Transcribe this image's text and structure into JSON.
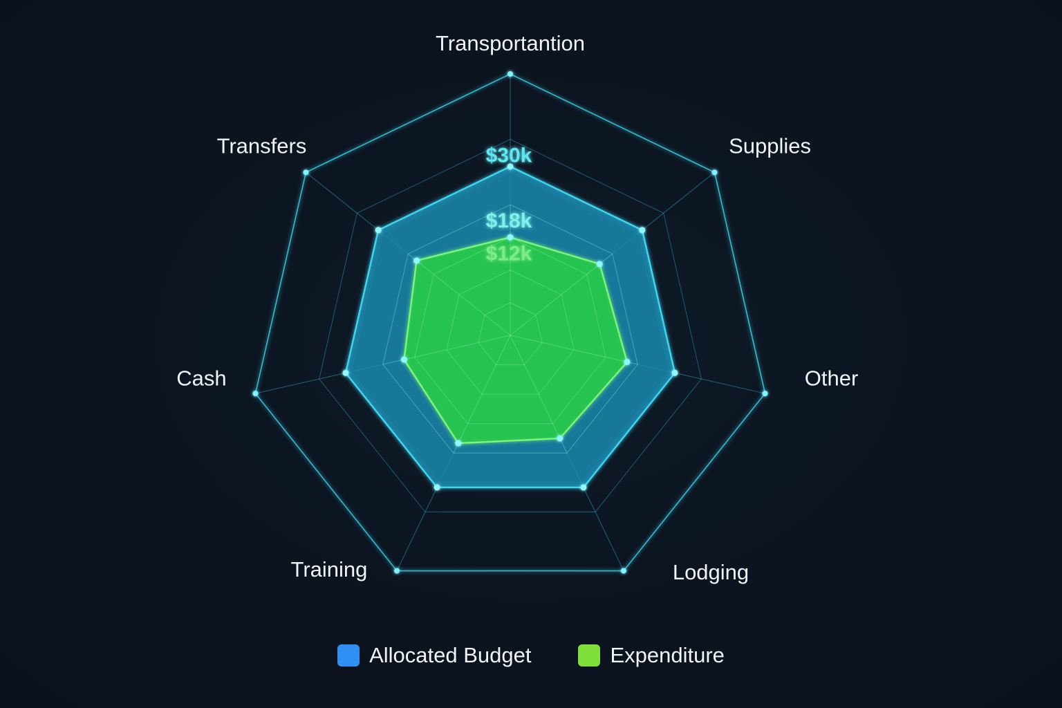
{
  "chart_data": {
    "type": "radar",
    "title": "",
    "categories": [
      "Transportantion",
      "Supplies",
      "Other",
      "Lodging",
      "Training",
      "Cash",
      "Transfers"
    ],
    "rmax": 48,
    "grid_levels": [
      6,
      12,
      18,
      24,
      30,
      36,
      48
    ],
    "grid": true,
    "legend_position": "bottom-center",
    "tick_labels": [
      {
        "text": "$30k",
        "value": 30,
        "color": "#5ee6f0"
      },
      {
        "text": "$18k",
        "value": 18,
        "color": "#7ef0e8"
      },
      {
        "text": "$12k",
        "value": 12,
        "color": "#7dec86"
      }
    ],
    "series": [
      {
        "name": "Allocated Budget",
        "values": [
          31,
          31,
          31,
          31,
          31,
          31,
          31
        ],
        "color": "#2f8ff2",
        "line_color": "#3fd6f0",
        "fill_color": "#1b8fb8"
      },
      {
        "name": "Expenditure",
        "values": [
          18,
          21,
          22,
          21,
          22,
          20,
          22
        ],
        "color": "#7fe03a",
        "line_color": "#7cf57a",
        "fill_color": "#25c44e"
      }
    ]
  },
  "legend": {
    "items": [
      {
        "label": "Allocated Budget",
        "color": "#2f8ff2"
      },
      {
        "label": "Expenditure",
        "color": "#7fe03a"
      }
    ]
  }
}
